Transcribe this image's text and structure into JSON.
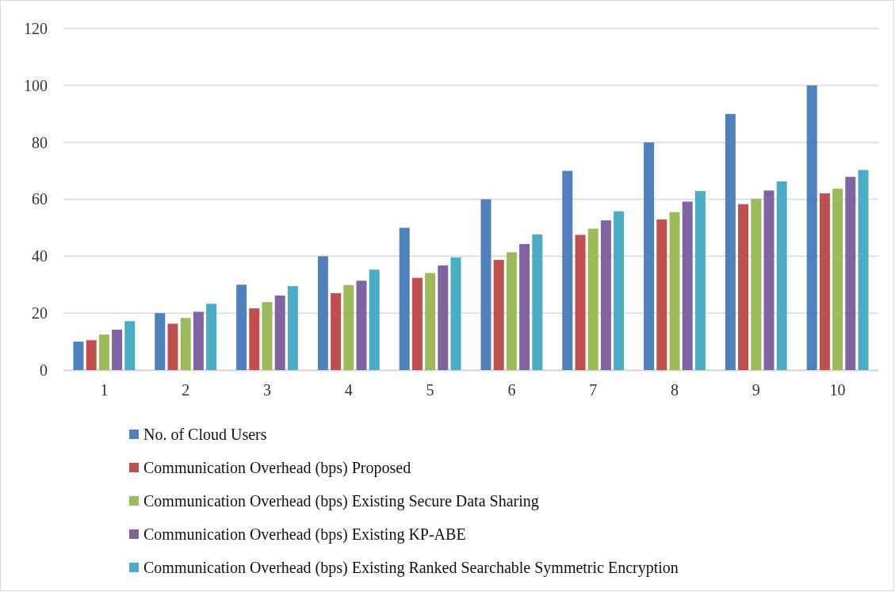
{
  "chart_data": {
    "type": "bar",
    "categories": [
      "1",
      "2",
      "3",
      "4",
      "5",
      "6",
      "7",
      "8",
      "9",
      "10"
    ],
    "series": [
      {
        "name": "No. of Cloud Users",
        "color": "#4f81bd",
        "values": [
          10,
          20,
          30,
          40,
          50,
          60,
          70,
          80,
          90,
          100
        ]
      },
      {
        "name": "Communication Overhead (bps) Proposed",
        "color": "#c0504d",
        "values": [
          10.5,
          16.3,
          21.7,
          27,
          32.4,
          38.7,
          47.5,
          52.9,
          58.3,
          62.1
        ]
      },
      {
        "name": "Communication Overhead (bps) Existing Secure Data Sharing",
        "color": "#9bbb59",
        "values": [
          12.5,
          18.3,
          23.9,
          29.9,
          34.1,
          41.4,
          49.7,
          55.5,
          60.2,
          63.7
        ]
      },
      {
        "name": "Communication Overhead (bps) Existing KP-ABE",
        "color": "#8064a2",
        "values": [
          14.2,
          20.5,
          26.2,
          31.4,
          36.8,
          44.3,
          52.6,
          59.2,
          63.1,
          67.9
        ]
      },
      {
        "name": "Communication Overhead (bps) Existing Ranked Searchable Symmetric Encryption",
        "color": "#4bacc6",
        "values": [
          17.2,
          23.3,
          29.5,
          35.3,
          39.6,
          47.7,
          55.8,
          62.9,
          66.3,
          70.3
        ]
      }
    ],
    "ylim": [
      0,
      120
    ],
    "yticks": [
      0,
      20,
      40,
      60,
      80,
      100,
      120
    ],
    "grid": "y",
    "legend": "bottom"
  }
}
